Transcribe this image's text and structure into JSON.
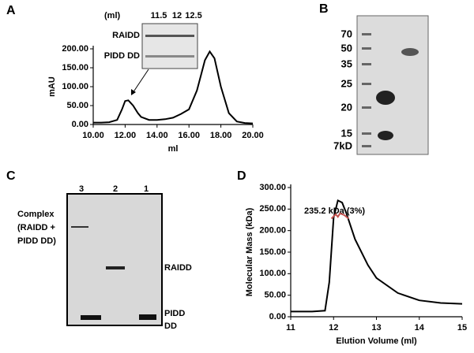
{
  "chart_data": [
    {
      "type": "line",
      "panel": "A",
      "ylabel": "mAU",
      "xlabel": "ml",
      "xlim": [
        10,
        20
      ],
      "ylim": [
        0,
        200
      ],
      "xticks": [
        {
          "value": 10,
          "label": "10.00"
        },
        {
          "value": 12,
          "label": "12.00"
        },
        {
          "value": 14,
          "label": "14.00"
        },
        {
          "value": 16,
          "label": "16.00"
        },
        {
          "value": 18,
          "label": "18.00"
        },
        {
          "value": 20,
          "label": "20.00"
        }
      ],
      "yticks": [
        {
          "value": 0,
          "label": "0.00"
        },
        {
          "value": 50,
          "label": "50.00"
        },
        {
          "value": 100,
          "label": "100.00"
        },
        {
          "value": 150,
          "label": "150.00"
        },
        {
          "value": 200,
          "label": "200.00"
        }
      ],
      "series": [
        {
          "color": "#000000",
          "x": [
            10,
            10.5,
            11,
            11.5,
            11.8,
            12,
            12.2,
            12.5,
            12.8,
            13,
            13.5,
            14,
            14.5,
            15,
            15.5,
            16,
            16.5,
            17,
            17.3,
            17.6,
            18,
            18.5,
            19,
            19.5,
            20
          ],
          "values": [
            5,
            5,
            6,
            12,
            40,
            62,
            64,
            50,
            30,
            20,
            12,
            12,
            14,
            18,
            28,
            40,
            90,
            170,
            193,
            175,
            100,
            30,
            8,
            4,
            3
          ]
        }
      ],
      "inset": {
        "header": [
          "(ml)",
          "11.5",
          "12",
          "12.5"
        ],
        "rows": [
          "RAIDD",
          "PIDD DD"
        ]
      }
    },
    {
      "type": "line",
      "panel": "D",
      "ylabel": "Molecular Mass (kDa)",
      "xlabel": "Elution Volume (ml)",
      "annotation": "235.2 kDa  (3%)",
      "xlim": [
        11,
        15
      ],
      "ylim": [
        0,
        300
      ],
      "xticks": [
        11,
        12,
        13,
        14,
        15
      ],
      "yticks": [
        {
          "value": 0,
          "label": "0.00"
        },
        {
          "value": 50,
          "label": "50.00"
        },
        {
          "value": 100,
          "label": "100.00"
        },
        {
          "value": 150,
          "label": "150.00"
        },
        {
          "value": 200,
          "label": "200.00"
        },
        {
          "value": 250,
          "label": "250.00"
        },
        {
          "value": 300,
          "label": "300.00"
        }
      ],
      "series": [
        {
          "color": "#000000",
          "x": [
            11,
            11.5,
            11.8,
            11.9,
            12,
            12.1,
            12.2,
            12.3,
            12.5,
            12.8,
            13,
            13.5,
            14,
            14.5,
            15
          ],
          "values": [
            12,
            12,
            14,
            80,
            230,
            270,
            265,
            240,
            180,
            120,
            90,
            55,
            38,
            32,
            30
          ]
        },
        {
          "color": "#c0504d",
          "x": [
            11.95,
            12.05,
            12.1,
            12.15,
            12.25,
            12.35
          ],
          "values": [
            228,
            238,
            232,
            240,
            236,
            228
          ]
        }
      ]
    }
  ],
  "panel_b": {
    "label": "B",
    "markers": [
      "70",
      "50",
      "35",
      "25",
      "20",
      "15",
      "7kD"
    ]
  },
  "panel_c": {
    "label": "C",
    "lanes": [
      "3",
      "2",
      "1"
    ],
    "left": [
      "Complex",
      "(RAIDD +",
      "PIDD DD)"
    ],
    "right": [
      "RAIDD",
      "PIDD",
      "DD"
    ]
  }
}
